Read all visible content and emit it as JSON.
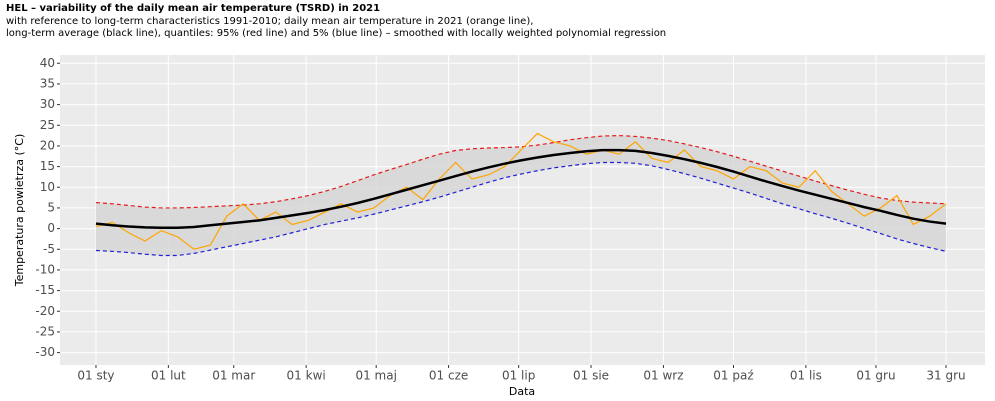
{
  "chart_data": {
    "type": "line",
    "title": "HEL – variability of the daily mean air temperature (TSRD) in 2021",
    "subtitle": [
      "with reference to long-term characteristics 1991-2010; daily mean air temperature in 2021 (orange line),",
      "long-term average (black line), quantiles: 95% (red line) and 5% (blue line) – smoothed with locally weighted polynomial regression"
    ],
    "x_label": "Data",
    "y_label": "Temperatura powietrza (°C)",
    "x": [
      1,
      8,
      15,
      22,
      29,
      36,
      43,
      50,
      57,
      64,
      71,
      78,
      85,
      92,
      99,
      106,
      113,
      120,
      127,
      134,
      141,
      148,
      155,
      162,
      169,
      176,
      183,
      190,
      197,
      204,
      211,
      218,
      225,
      232,
      239,
      246,
      253,
      260,
      267,
      274,
      281,
      288,
      295,
      302,
      309,
      316,
      323,
      330,
      337,
      344,
      351,
      358,
      365
    ],
    "series": [
      {
        "name": "95%",
        "color": "#e41a1c",
        "dashed": true,
        "values": [
          6.3,
          6.0,
          5.6,
          5.2,
          5.0,
          5.0,
          5.1,
          5.3,
          5.5,
          5.7,
          6.0,
          6.5,
          7.2,
          8.0,
          9.0,
          10.2,
          11.6,
          13.0,
          14.3,
          15.5,
          16.8,
          18.0,
          18.9,
          19.3,
          19.5,
          19.6,
          19.8,
          20.2,
          20.8,
          21.5,
          22.0,
          22.4,
          22.5,
          22.3,
          21.9,
          21.3,
          20.5,
          19.6,
          18.6,
          17.5,
          16.3,
          15.1,
          13.9,
          12.7,
          11.5,
          10.4,
          9.3,
          8.3,
          7.4,
          6.8,
          6.4,
          6.2,
          6.0
        ]
      },
      {
        "name": "5%",
        "color": "#1f1fd6",
        "dashed": true,
        "values": [
          -5.3,
          -5.5,
          -5.8,
          -6.2,
          -6.5,
          -6.5,
          -6.0,
          -5.2,
          -4.4,
          -3.6,
          -2.8,
          -2.0,
          -1.0,
          0.0,
          1.0,
          1.8,
          2.6,
          3.5,
          4.5,
          5.5,
          6.5,
          7.6,
          8.8,
          10.0,
          11.2,
          12.3,
          13.2,
          14.0,
          14.7,
          15.2,
          15.7,
          16.0,
          16.0,
          15.8,
          15.2,
          14.3,
          13.3,
          12.2,
          11.0,
          9.8,
          8.6,
          7.3,
          6.0,
          4.8,
          3.6,
          2.5,
          1.3,
          0.0,
          -1.2,
          -2.5,
          -3.6,
          -4.6,
          -5.5
        ]
      },
      {
        "name": "2021",
        "color": "#ffa500",
        "dashed": false,
        "values": [
          0.5,
          1.5,
          -1,
          -3,
          -0.5,
          -2,
          -5,
          -4,
          3,
          6,
          2,
          4,
          1,
          2,
          4,
          6,
          4,
          5,
          8,
          10,
          7,
          12,
          16,
          12,
          13,
          15,
          19,
          23,
          21,
          20,
          18,
          19,
          18,
          21,
          17,
          16,
          19,
          15,
          14,
          12,
          15,
          14,
          11,
          10,
          14,
          9,
          6,
          3,
          5,
          8,
          1,
          3,
          6
        ]
      },
      {
        "name": "average",
        "color": "#000000",
        "dashed": false,
        "width": 2.5,
        "values": [
          1.2,
          0.8,
          0.5,
          0.3,
          0.2,
          0.2,
          0.4,
          0.8,
          1.2,
          1.6,
          2.0,
          2.6,
          3.2,
          3.8,
          4.5,
          5.3,
          6.2,
          7.2,
          8.3,
          9.4,
          10.5,
          11.6,
          12.7,
          13.8,
          14.8,
          15.7,
          16.5,
          17.2,
          17.8,
          18.3,
          18.7,
          19.0,
          19.0,
          18.8,
          18.3,
          17.6,
          16.8,
          15.9,
          14.9,
          13.8,
          12.6,
          11.4,
          10.3,
          9.2,
          8.2,
          7.2,
          6.2,
          5.2,
          4.3,
          3.3,
          2.4,
          1.7,
          1.2
        ]
      }
    ],
    "xlim": [
      -14.4,
      381.7
    ],
    "xticks": [
      {
        "value": 1,
        "label": "01 sty"
      },
      {
        "value": 32,
        "label": "01 lut"
      },
      {
        "value": 60,
        "label": "01 mar"
      },
      {
        "value": 91,
        "label": "01 kwi"
      },
      {
        "value": 121,
        "label": "01 maj"
      },
      {
        "value": 152,
        "label": "01 cze"
      },
      {
        "value": 182,
        "label": "01 lip"
      },
      {
        "value": 213,
        "label": "01 sie"
      },
      {
        "value": 244,
        "label": "01 wrz"
      },
      {
        "value": 274,
        "label": "01 paź"
      },
      {
        "value": 305,
        "label": "01 lis"
      },
      {
        "value": 335,
        "label": "01 gru"
      },
      {
        "value": 365,
        "label": "31 gru"
      }
    ],
    "ylim": [
      -33,
      42
    ],
    "yticks": [
      -30,
      -25,
      -20,
      -15,
      -10,
      -5,
      0,
      5,
      10,
      15,
      20,
      25,
      30,
      35,
      40
    ],
    "grid": true
  }
}
